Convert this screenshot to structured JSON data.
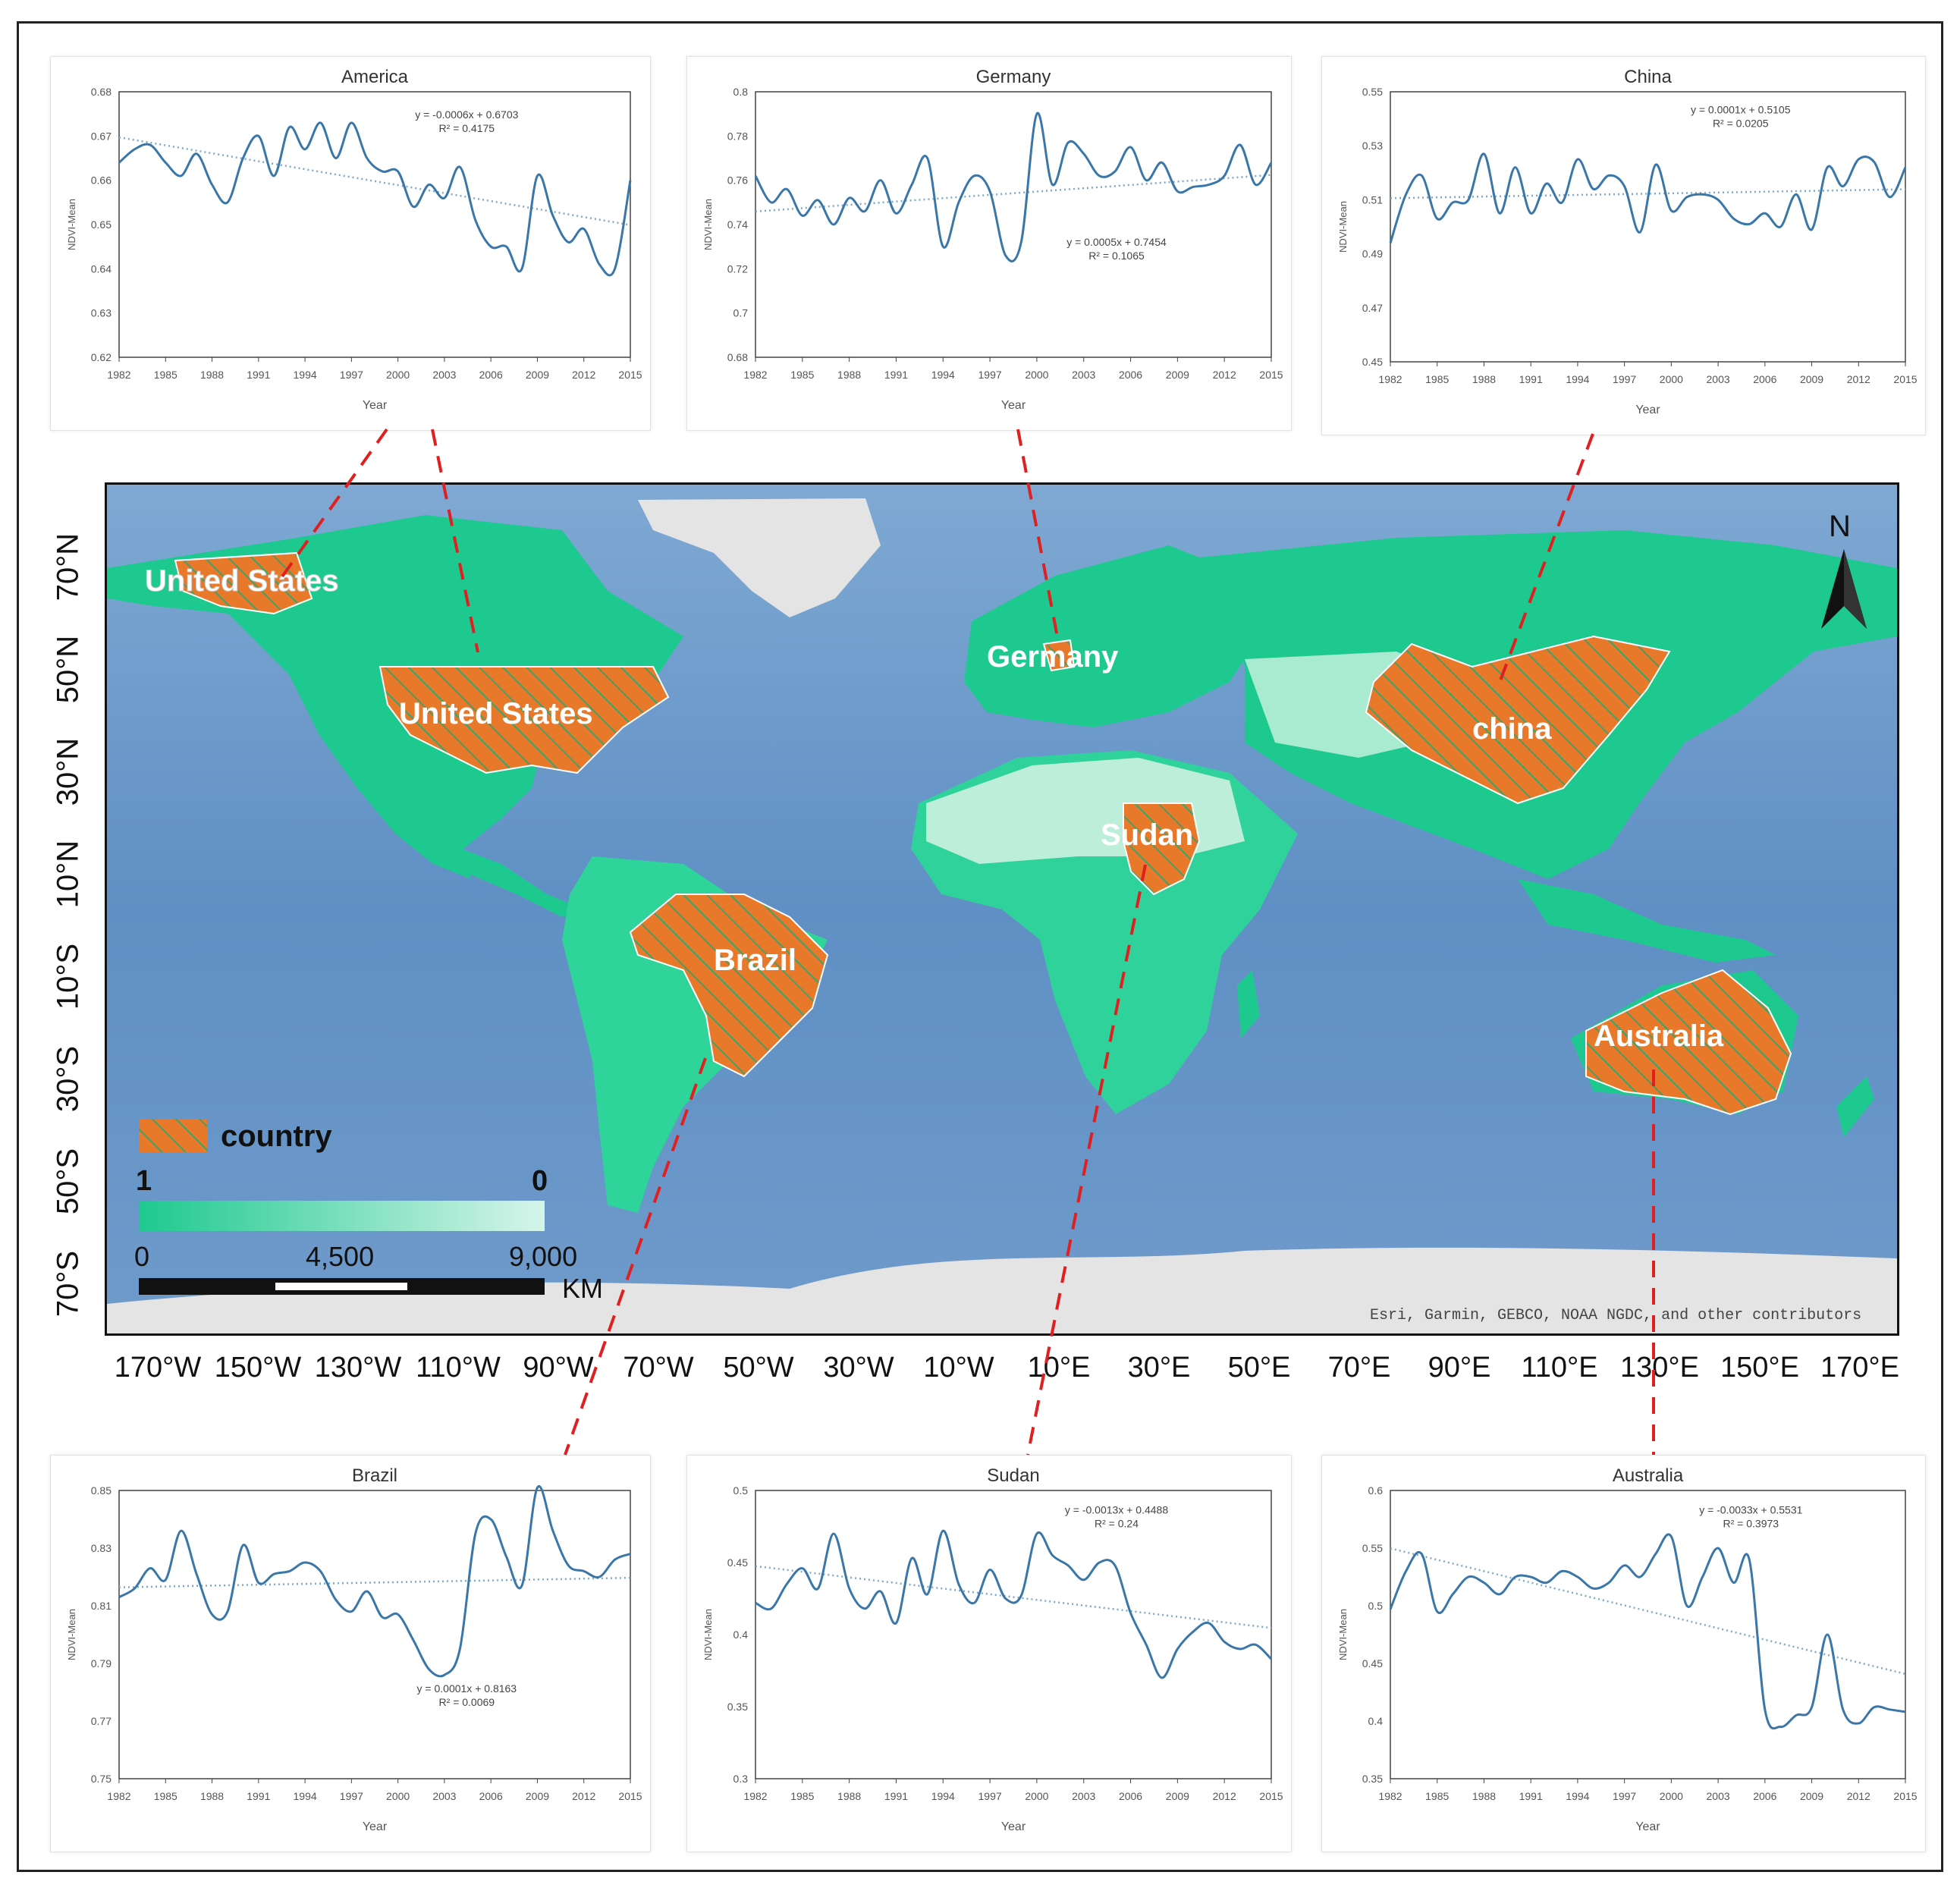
{
  "colors": {
    "ocean": "#5f8fc4",
    "ice": "#e6e6e6",
    "veg_high": "#1ec98f",
    "veg_low": "#c8f2e2",
    "country": "#e8782a",
    "line": "#3a77a8",
    "leader": "#e02020"
  },
  "map": {
    "lat_labels": [
      "70°N",
      "50°N",
      "30°N",
      "10°N",
      "10°S",
      "30°S",
      "50°S",
      "70°S"
    ],
    "lon_labels": [
      "170°W",
      "150°W",
      "130°W",
      "110°W",
      "90°W",
      "70°W",
      "50°W",
      "30°W",
      "10°W",
      "10°E",
      "30°E",
      "50°E",
      "70°E",
      "90°E",
      "110°E",
      "130°E",
      "150°E",
      "170°E"
    ],
    "country_labels": [
      "United States",
      "United States",
      "Germany",
      "china",
      "Sudan",
      "Brazil",
      "Australia"
    ],
    "north_label": "N",
    "legend": {
      "country_label": "country",
      "ramp_high": "1",
      "ramp_low": "0",
      "scale_0": "0",
      "scale_1": "4,500",
      "scale_2": "9,000",
      "scale_unit": "KM"
    },
    "attribution": "Esri, Garmin, GEBCO, NOAA NGDC, and other contributors"
  },
  "chart_data": [
    {
      "type": "line",
      "title": "America",
      "xlabel": "Year",
      "ylabel": "NDVI-Mean",
      "xticks": [
        1982,
        1985,
        1988,
        1991,
        1994,
        1997,
        2000,
        2003,
        2006,
        2009,
        2012,
        2015
      ],
      "yticks": [
        "0.62",
        "0.63",
        "0.64",
        "0.65",
        "0.66",
        "0.67",
        "0.68"
      ],
      "ylim": [
        0.62,
        0.68
      ],
      "x": [
        1982,
        1983,
        1984,
        1985,
        1986,
        1987,
        1988,
        1989,
        1990,
        1991,
        1992,
        1993,
        1994,
        1995,
        1996,
        1997,
        1998,
        1999,
        2000,
        2001,
        2002,
        2003,
        2004,
        2005,
        2006,
        2007,
        2008,
        2009,
        2010,
        2011,
        2012,
        2013,
        2014,
        2015
      ],
      "values": [
        0.664,
        0.667,
        0.668,
        0.664,
        0.661,
        0.666,
        0.659,
        0.655,
        0.665,
        0.67,
        0.661,
        0.672,
        0.667,
        0.673,
        0.665,
        0.673,
        0.665,
        0.662,
        0.662,
        0.654,
        0.659,
        0.656,
        0.663,
        0.651,
        0.645,
        0.645,
        0.64,
        0.661,
        0.652,
        0.646,
        0.649,
        0.641,
        0.64,
        0.66
      ],
      "trend": {
        "slope": -0.0006,
        "intercept": 0.6703
      },
      "equation": "y = -0.0006x + 0.6703",
      "r2": "R² = 0.4175"
    },
    {
      "type": "line",
      "title": "Germany",
      "xlabel": "Year",
      "ylabel": "NDVI-Mean",
      "xticks": [
        1982,
        1985,
        1988,
        1991,
        1994,
        1997,
        2000,
        2003,
        2006,
        2009,
        2012,
        2015
      ],
      "yticks": [
        "0.68",
        "0.7",
        "0.72",
        "0.74",
        "0.76",
        "0.78",
        "0.8"
      ],
      "ylim": [
        0.68,
        0.8
      ],
      "x": [
        1982,
        1983,
        1984,
        1985,
        1986,
        1987,
        1988,
        1989,
        1990,
        1991,
        1992,
        1993,
        1994,
        1995,
        1996,
        1997,
        1998,
        1999,
        2000,
        2001,
        2002,
        2003,
        2004,
        2005,
        2006,
        2007,
        2008,
        2009,
        2010,
        2011,
        2012,
        2013,
        2014,
        2015
      ],
      "values": [
        0.762,
        0.75,
        0.756,
        0.744,
        0.751,
        0.74,
        0.752,
        0.746,
        0.76,
        0.745,
        0.758,
        0.77,
        0.73,
        0.75,
        0.762,
        0.755,
        0.726,
        0.732,
        0.79,
        0.758,
        0.777,
        0.772,
        0.762,
        0.764,
        0.775,
        0.76,
        0.768,
        0.755,
        0.757,
        0.758,
        0.762,
        0.776,
        0.758,
        0.768
      ],
      "trend": {
        "slope": 0.0005,
        "intercept": 0.7454
      },
      "equation": "y = 0.0005x + 0.7454",
      "r2": "R² = 0.1065"
    },
    {
      "type": "line",
      "title": "China",
      "xlabel": "Year",
      "ylabel": "NDVI-Mean",
      "xticks": [
        1982,
        1985,
        1988,
        1991,
        1994,
        1997,
        2000,
        2003,
        2006,
        2009,
        2012,
        2015
      ],
      "yticks": [
        "0.45",
        "0.47",
        "0.49",
        "0.51",
        "0.53",
        "0.55"
      ],
      "ylim": [
        0.45,
        0.55
      ],
      "x": [
        1982,
        1983,
        1984,
        1985,
        1986,
        1987,
        1988,
        1989,
        1990,
        1991,
        1992,
        1993,
        1994,
        1995,
        1996,
        1997,
        1998,
        1999,
        2000,
        2001,
        2002,
        2003,
        2004,
        2005,
        2006,
        2007,
        2008,
        2009,
        2010,
        2011,
        2012,
        2013,
        2014,
        2015
      ],
      "values": [
        0.494,
        0.512,
        0.519,
        0.503,
        0.509,
        0.51,
        0.527,
        0.505,
        0.522,
        0.505,
        0.516,
        0.509,
        0.525,
        0.514,
        0.519,
        0.515,
        0.498,
        0.523,
        0.506,
        0.511,
        0.512,
        0.51,
        0.503,
        0.501,
        0.505,
        0.5,
        0.512,
        0.499,
        0.522,
        0.515,
        0.525,
        0.524,
        0.511,
        0.522
      ],
      "trend": {
        "slope": 0.0001,
        "intercept": 0.5105
      },
      "equation": "y = 0.0001x + 0.5105",
      "r2": "R² = 0.0205"
    },
    {
      "type": "line",
      "title": "Brazil",
      "xlabel": "Year",
      "ylabel": "NDVI-Mean",
      "xticks": [
        1982,
        1985,
        1988,
        1991,
        1994,
        1997,
        2000,
        2003,
        2006,
        2009,
        2012,
        2015
      ],
      "yticks": [
        "0.75",
        "0.77",
        "0.79",
        "0.81",
        "0.83",
        "0.85"
      ],
      "ylim": [
        0.75,
        0.85
      ],
      "x": [
        1982,
        1983,
        1984,
        1985,
        1986,
        1987,
        1988,
        1989,
        1990,
        1991,
        1992,
        1993,
        1994,
        1995,
        1996,
        1997,
        1998,
        1999,
        2000,
        2001,
        2002,
        2003,
        2004,
        2005,
        2006,
        2007,
        2008,
        2009,
        2010,
        2011,
        2012,
        2013,
        2014,
        2015
      ],
      "values": [
        0.813,
        0.816,
        0.823,
        0.819,
        0.836,
        0.821,
        0.807,
        0.808,
        0.831,
        0.818,
        0.821,
        0.822,
        0.825,
        0.822,
        0.812,
        0.808,
        0.815,
        0.806,
        0.807,
        0.798,
        0.788,
        0.786,
        0.795,
        0.835,
        0.84,
        0.827,
        0.817,
        0.851,
        0.836,
        0.824,
        0.822,
        0.82,
        0.826,
        0.828
      ],
      "trend": {
        "slope": 0.0001,
        "intercept": 0.8163
      },
      "equation": "y = 0.0001x + 0.8163",
      "r2": "R² = 0.0069"
    },
    {
      "type": "line",
      "title": "Sudan",
      "xlabel": "Year",
      "ylabel": "NDVI-Mean",
      "xticks": [
        1982,
        1985,
        1988,
        1991,
        1994,
        1997,
        2000,
        2003,
        2006,
        2009,
        2012,
        2015
      ],
      "yticks": [
        "0.3",
        "0.35",
        "0.4",
        "0.45",
        "0.5"
      ],
      "ylim": [
        0.3,
        0.5
      ],
      "x": [
        1982,
        1983,
        1984,
        1985,
        1986,
        1987,
        1988,
        1989,
        1990,
        1991,
        1992,
        1993,
        1994,
        1995,
        1996,
        1997,
        1998,
        1999,
        2000,
        2001,
        2002,
        2003,
        2004,
        2005,
        2006,
        2007,
        2008,
        2009,
        2010,
        2011,
        2012,
        2013,
        2014,
        2015
      ],
      "values": [
        0.422,
        0.418,
        0.435,
        0.446,
        0.432,
        0.47,
        0.432,
        0.418,
        0.43,
        0.408,
        0.453,
        0.428,
        0.472,
        0.435,
        0.422,
        0.445,
        0.425,
        0.427,
        0.47,
        0.455,
        0.448,
        0.438,
        0.45,
        0.448,
        0.415,
        0.393,
        0.37,
        0.39,
        0.402,
        0.408,
        0.395,
        0.39,
        0.393,
        0.383
      ],
      "trend": {
        "slope": -0.0013,
        "intercept": 0.4488
      },
      "equation": "y = -0.0013x + 0.4488",
      "r2": "R² = 0.24"
    },
    {
      "type": "line",
      "title": "Australia",
      "xlabel": "Year",
      "ylabel": "NDVI-Mean",
      "xticks": [
        1982,
        1985,
        1988,
        1991,
        1994,
        1997,
        2000,
        2003,
        2006,
        2009,
        2012,
        2015
      ],
      "yticks": [
        "0.35",
        "0.4",
        "0.45",
        "0.5",
        "0.55",
        "0.6"
      ],
      "ylim": [
        0.35,
        0.6
      ],
      "x": [
        1982,
        1983,
        1984,
        1985,
        1986,
        1987,
        1988,
        1989,
        1990,
        1991,
        1992,
        1993,
        1994,
        1995,
        1996,
        1997,
        1998,
        1999,
        2000,
        2001,
        2002,
        2003,
        2004,
        2005,
        2006,
        2007,
        2008,
        2009,
        2010,
        2011,
        2012,
        2013,
        2014,
        2015
      ],
      "values": [
        0.497,
        0.53,
        0.545,
        0.495,
        0.51,
        0.525,
        0.52,
        0.51,
        0.525,
        0.525,
        0.52,
        0.53,
        0.525,
        0.515,
        0.52,
        0.535,
        0.525,
        0.545,
        0.56,
        0.5,
        0.525,
        0.55,
        0.52,
        0.54,
        0.41,
        0.395,
        0.405,
        0.412,
        0.475,
        0.41,
        0.398,
        0.412,
        0.41,
        0.408
      ],
      "trend": {
        "slope": -0.0033,
        "intercept": 0.5531
      },
      "equation": "y = -0.0033x + 0.5531",
      "r2": "R² = 0.3973"
    }
  ]
}
